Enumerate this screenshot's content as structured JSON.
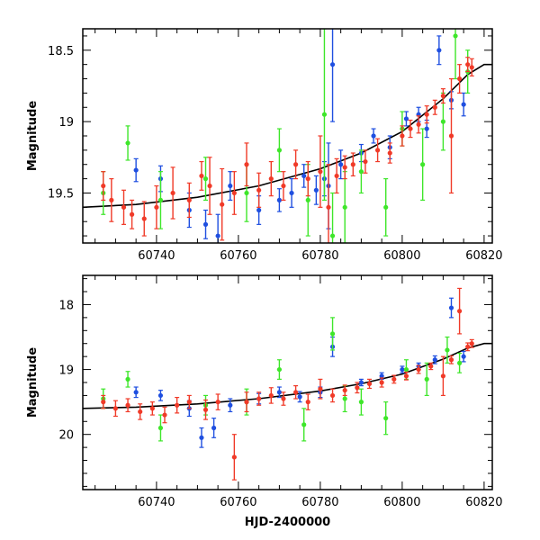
{
  "chart_data": [
    {
      "type": "scatter",
      "title": "",
      "xlabel": "",
      "ylabel": "Magnitude",
      "xlim": [
        60722,
        60822
      ],
      "ylim": [
        19.85,
        18.35
      ],
      "y_inverted": true,
      "x_ticks": [
        60740,
        60760,
        60780,
        60800,
        60820
      ],
      "y_ticks": [
        18.5,
        19,
        19.5
      ],
      "colors": {
        "blue": "#1f4fe0",
        "green": "#3ee62a",
        "red": "#f03a28",
        "model": "#000000"
      },
      "model_curve": {
        "x": [
          60722,
          60735,
          60750,
          60765,
          60780,
          60790,
          60800,
          60810,
          60816,
          60820,
          60822
        ],
        "y": [
          19.6,
          19.58,
          19.53,
          19.45,
          19.33,
          19.22,
          19.07,
          18.84,
          18.67,
          18.6,
          18.6
        ]
      },
      "series": [
        {
          "color": "blue",
          "x": [
            60735,
            60741,
            60748,
            60752,
            60755,
            60758,
            60765,
            60770,
            60773,
            60776,
            60779,
            60781,
            60782,
            60783,
            60785,
            60790,
            60793,
            60797,
            60801,
            60804,
            60806,
            60809,
            60812,
            60815
          ],
          "y": [
            19.34,
            19.4,
            19.62,
            19.72,
            19.8,
            19.45,
            19.62,
            19.55,
            19.5,
            19.38,
            19.48,
            19.4,
            19.45,
            18.6,
            19.3,
            19.22,
            19.1,
            19.18,
            18.98,
            18.95,
            19.05,
            18.5,
            18.85,
            18.88
          ],
          "err": [
            0.08,
            0.09,
            0.12,
            0.1,
            0.15,
            0.1,
            0.1,
            0.08,
            0.1,
            0.08,
            0.1,
            0.12,
            0.3,
            0.4,
            0.1,
            0.06,
            0.05,
            0.08,
            0.05,
            0.05,
            0.06,
            0.1,
            0.06,
            0.08
          ]
        },
        {
          "color": "green",
          "x": [
            60727,
            60733,
            60741,
            60752,
            60762,
            60770,
            60777,
            60781,
            60783,
            60786,
            60790,
            60796,
            60800,
            60805,
            60810,
            60813,
            60816
          ],
          "y": [
            19.5,
            19.15,
            19.55,
            19.4,
            19.5,
            19.2,
            19.55,
            18.95,
            19.8,
            19.6,
            19.35,
            19.6,
            19.05,
            19.3,
            19.0,
            18.4,
            18.65
          ],
          "err": [
            0.15,
            0.12,
            0.2,
            0.15,
            0.2,
            0.15,
            0.25,
            0.6,
            0.3,
            0.25,
            0.15,
            0.2,
            0.12,
            0.25,
            0.2,
            0.3,
            0.15
          ]
        },
        {
          "color": "red",
          "x": [
            60727,
            60729,
            60732,
            60734,
            60737,
            60740,
            60744,
            60748,
            60751,
            60753,
            60756,
            60759,
            60762,
            60765,
            60768,
            60771,
            60774,
            60777,
            60780,
            60782,
            60784,
            60786,
            60788,
            60791,
            60794,
            60797,
            60800,
            60802,
            60804,
            60806,
            60808,
            60810,
            60812,
            60814,
            60816,
            60817
          ],
          "y": [
            19.45,
            19.55,
            19.6,
            19.65,
            19.68,
            19.6,
            19.5,
            19.55,
            19.38,
            19.45,
            19.58,
            19.5,
            19.3,
            19.48,
            19.4,
            19.45,
            19.3,
            19.4,
            19.35,
            19.6,
            19.38,
            19.32,
            19.3,
            19.28,
            19.2,
            19.22,
            19.1,
            19.05,
            19.02,
            18.95,
            18.9,
            18.82,
            19.1,
            18.7,
            18.6,
            18.62
          ],
          "err": [
            0.1,
            0.15,
            0.12,
            0.1,
            0.12,
            0.15,
            0.18,
            0.12,
            0.1,
            0.2,
            0.25,
            0.15,
            0.15,
            0.12,
            0.12,
            0.1,
            0.1,
            0.12,
            0.25,
            0.3,
            0.12,
            0.08,
            0.08,
            0.08,
            0.08,
            0.07,
            0.07,
            0.06,
            0.06,
            0.06,
            0.05,
            0.05,
            0.4,
            0.1,
            0.05,
            0.06
          ]
        }
      ]
    },
    {
      "type": "scatter",
      "title": "",
      "xlabel": "HJD-2400000",
      "ylabel": "Magnitude",
      "xlim": [
        60722,
        60822
      ],
      "ylim": [
        20.85,
        17.55
      ],
      "y_inverted": true,
      "x_ticks": [
        60740,
        60760,
        60780,
        60800,
        60820
      ],
      "y_ticks": [
        18,
        19,
        20
      ],
      "colors": {
        "blue": "#1f4fe0",
        "green": "#3ee62a",
        "red": "#f03a28",
        "model": "#000000"
      },
      "model_curve": {
        "x": [
          60722,
          60735,
          60750,
          60765,
          60780,
          60790,
          60800,
          60810,
          60816,
          60820,
          60822
        ],
        "y": [
          19.6,
          19.58,
          19.53,
          19.45,
          19.33,
          19.22,
          19.07,
          18.84,
          18.67,
          18.6,
          18.6
        ]
      },
      "series": [
        {
          "color": "blue",
          "x": [
            60735,
            60741,
            60748,
            60751,
            60754,
            60758,
            60765,
            60770,
            60775,
            60780,
            60783,
            60790,
            60795,
            60800,
            60804,
            60808,
            60812,
            60815
          ],
          "y": [
            19.35,
            19.4,
            19.6,
            20.05,
            19.9,
            19.55,
            19.45,
            19.35,
            19.42,
            19.35,
            18.65,
            19.2,
            19.1,
            19.0,
            18.95,
            18.85,
            18.05,
            18.8
          ],
          "err": [
            0.08,
            0.08,
            0.12,
            0.15,
            0.15,
            0.1,
            0.08,
            0.08,
            0.08,
            0.08,
            0.15,
            0.05,
            0.05,
            0.05,
            0.05,
            0.06,
            0.15,
            0.08
          ]
        },
        {
          "color": "green",
          "x": [
            60727,
            60733,
            60741,
            60752,
            60762,
            60770,
            60776,
            60783,
            60786,
            60790,
            60796,
            60801,
            60806,
            60811,
            60814
          ],
          "y": [
            19.45,
            19.15,
            19.9,
            19.55,
            19.5,
            19.0,
            19.85,
            18.45,
            19.45,
            19.5,
            19.75,
            19.0,
            19.15,
            18.7,
            18.9
          ],
          "err": [
            0.15,
            0.12,
            0.2,
            0.15,
            0.2,
            0.15,
            0.25,
            0.25,
            0.2,
            0.2,
            0.25,
            0.15,
            0.25,
            0.2,
            0.15
          ]
        },
        {
          "color": "red",
          "x": [
            60727,
            60730,
            60733,
            60736,
            60739,
            60742,
            60745,
            60748,
            60752,
            60755,
            60759,
            60762,
            60765,
            60768,
            60771,
            60774,
            60777,
            60780,
            60783,
            60786,
            60789,
            60792,
            60795,
            60798,
            60801,
            60804,
            60807,
            60810,
            60812,
            60814,
            60816,
            60817
          ],
          "y": [
            19.5,
            19.6,
            19.55,
            19.65,
            19.6,
            19.7,
            19.55,
            19.5,
            19.62,
            19.5,
            20.35,
            19.5,
            19.45,
            19.4,
            19.45,
            19.35,
            19.5,
            19.3,
            19.4,
            19.32,
            19.28,
            19.22,
            19.2,
            19.15,
            19.1,
            19.0,
            18.95,
            19.1,
            18.85,
            18.1,
            18.65,
            18.6
          ],
          "err": [
            0.1,
            0.12,
            0.1,
            0.12,
            0.1,
            0.12,
            0.12,
            0.1,
            0.15,
            0.12,
            0.35,
            0.15,
            0.1,
            0.12,
            0.1,
            0.1,
            0.12,
            0.15,
            0.1,
            0.08,
            0.08,
            0.07,
            0.07,
            0.06,
            0.06,
            0.06,
            0.05,
            0.3,
            0.06,
            0.35,
            0.06,
            0.06
          ]
        }
      ]
    }
  ]
}
